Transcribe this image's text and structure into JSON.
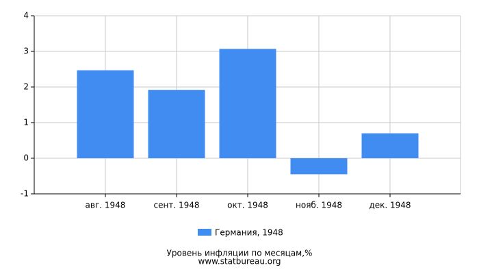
{
  "chart_data": {
    "type": "bar",
    "categories": [
      "авг. 1948",
      "сент. 1948",
      "окт. 1948",
      "нояб. 1948",
      "дек. 1948"
    ],
    "series": [
      {
        "name": "Германия, 1948",
        "color": "#418cf0",
        "values": [
          2.47,
          1.92,
          3.07,
          -0.45,
          0.7
        ]
      }
    ],
    "ylim": [
      -1,
      4
    ],
    "yticks": [
      -1,
      0,
      1,
      2,
      3,
      4
    ],
    "grid": true,
    "caption": "Уровень инфляции по месяцам,%",
    "source": "www.statbureau.org"
  }
}
